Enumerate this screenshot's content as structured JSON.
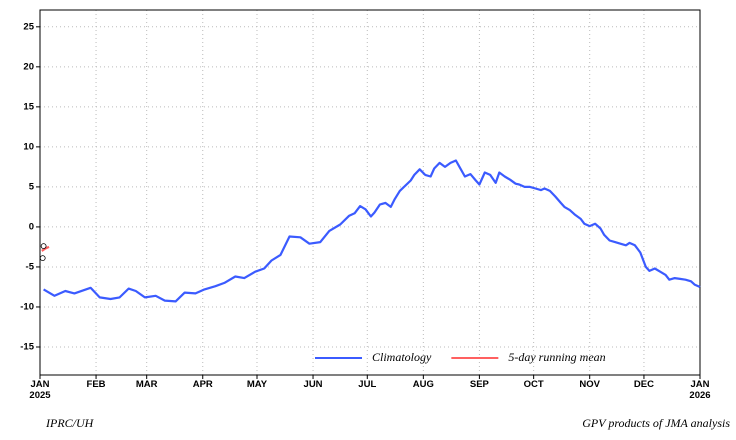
{
  "chart_data": {
    "type": "line",
    "xlim": [
      0,
      365
    ],
    "ylim": [
      -18.5,
      27.1
    ],
    "yticks": [
      -15,
      -10,
      -5,
      0,
      5,
      10,
      15,
      20,
      25
    ],
    "xticks": [
      {
        "value": 0,
        "label": "JAN 2025"
      },
      {
        "value": 31,
        "label": "FEB"
      },
      {
        "value": 59,
        "label": "MAR"
      },
      {
        "value": 90,
        "label": "APR"
      },
      {
        "value": 120,
        "label": "MAY"
      },
      {
        "value": 151,
        "label": "JUN"
      },
      {
        "value": 181,
        "label": "JUL"
      },
      {
        "value": 212,
        "label": "AUG"
      },
      {
        "value": 243,
        "label": "SEP"
      },
      {
        "value": 273,
        "label": "OCT"
      },
      {
        "value": 304,
        "label": "NOV"
      },
      {
        "value": 334,
        "label": "DEC"
      },
      {
        "value": 365,
        "label": "JAN 2026"
      }
    ],
    "grid": true,
    "legend": "lower right",
    "series": [
      {
        "name": "Climatology",
        "color": "#3b5bff",
        "x": [
          2,
          8,
          14,
          19,
          28,
          33,
          39,
          44,
          49,
          53,
          58,
          64,
          69,
          75,
          80,
          86,
          91,
          97,
          102,
          108,
          113,
          119,
          124,
          128,
          133,
          138,
          144,
          149,
          155,
          160,
          166,
          171,
          174,
          177,
          180,
          183,
          185,
          188,
          191,
          194,
          196,
          199,
          205,
          207,
          210,
          213,
          216,
          218,
          221,
          224,
          227,
          230,
          232,
          235,
          238,
          241,
          243,
          246,
          249,
          252,
          254,
          257,
          260,
          263,
          265,
          268,
          271,
          274,
          277,
          279,
          282,
          285,
          288,
          290,
          293,
          296,
          299,
          301,
          304,
          307,
          310,
          312,
          315,
          318,
          321,
          324,
          326,
          329,
          332,
          335,
          337,
          340,
          343,
          346,
          348,
          351,
          354,
          357,
          360,
          362,
          365
        ],
        "values": [
          -7.8,
          -8.6,
          -8,
          -8.3,
          -7.6,
          -8.8,
          -9,
          -8.8,
          -7.7,
          -8,
          -8.8,
          -8.6,
          -9.2,
          -9.3,
          -8.2,
          -8.3,
          -7.8,
          -7.4,
          -7,
          -6.2,
          -6.4,
          -5.6,
          -5.2,
          -4.2,
          -3.5,
          -1.2,
          -1.3,
          -2.1,
          -1.9,
          -0.5,
          0.3,
          1.4,
          1.7,
          2.6,
          2.2,
          1.3,
          1.8,
          2.8,
          3,
          2.5,
          3.4,
          4.5,
          5.8,
          6.5,
          7.2,
          6.5,
          6.3,
          7.3,
          8,
          7.5,
          8,
          8.3,
          7.5,
          6.3,
          6.6,
          5.8,
          5.3,
          6.8,
          6.5,
          5.5,
          6.8,
          6.3,
          5.9,
          5.4,
          5.3,
          5,
          5,
          4.8,
          4.6,
          4.8,
          4.5,
          3.8,
          3,
          2.5,
          2.1,
          1.5,
          1,
          0.4,
          0.1,
          0.4,
          -0.2,
          -1,
          -1.7,
          -1.9,
          -2.1,
          -2.3,
          -2,
          -2.3,
          -3.2,
          -5,
          -5.5,
          -5.2,
          -5.6,
          -6,
          -6.6,
          -6.4,
          -6.5,
          -6.6,
          -6.8,
          -7.2,
          -7.5
        ]
      },
      {
        "name": "5-day running mean",
        "color": "#ff6060",
        "x": [
          1,
          3,
          5
        ],
        "values": [
          -3,
          -2.7,
          -2.5
        ]
      },
      {
        "color": "#000000",
        "marker": "circle",
        "x": [
          2,
          1.5
        ],
        "values": [
          -2.4,
          -3.9
        ]
      }
    ]
  },
  "footer": {
    "left": "IPRC/UH",
    "right": "GPV products of JMA analysis"
  }
}
